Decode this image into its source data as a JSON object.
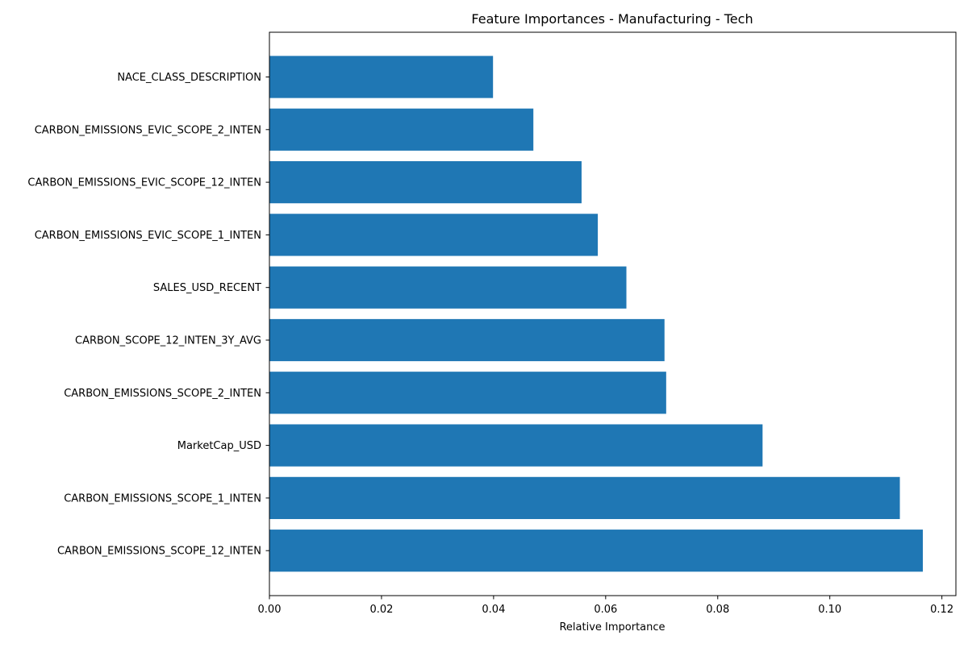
{
  "chart_data": {
    "type": "bar",
    "orientation": "horizontal",
    "title": "Feature Importances - Manufacturing - Tech",
    "xlabel": "Relative Importance",
    "ylabel": "",
    "xlim": [
      0,
      0.1225
    ],
    "x_ticks": [
      0.0,
      0.02,
      0.04,
      0.06,
      0.08,
      0.1,
      0.12
    ],
    "x_tick_labels": [
      "0.00",
      "0.02",
      "0.04",
      "0.06",
      "0.08",
      "0.10",
      "0.12"
    ],
    "grid": false,
    "categories": [
      "NACE_CLASS_DESCRIPTION",
      "CARBON_EMISSIONS_EVIC_SCOPE_2_INTEN",
      "CARBON_EMISSIONS_EVIC_SCOPE_12_INTEN",
      "CARBON_EMISSIONS_EVIC_SCOPE_1_INTEN",
      "SALES_USD_RECENT",
      "CARBON_SCOPE_12_INTEN_3Y_AVG",
      "CARBON_EMISSIONS_SCOPE_2_INTEN",
      "MarketCap_USD",
      "CARBON_EMISSIONS_SCOPE_1_INTEN",
      "CARBON_EMISSIONS_SCOPE_12_INTEN"
    ],
    "values": [
      0.0399,
      0.0471,
      0.0557,
      0.0586,
      0.0637,
      0.0705,
      0.0708,
      0.088,
      0.1125,
      0.1166
    ],
    "bar_color": "#1f77b4"
  }
}
